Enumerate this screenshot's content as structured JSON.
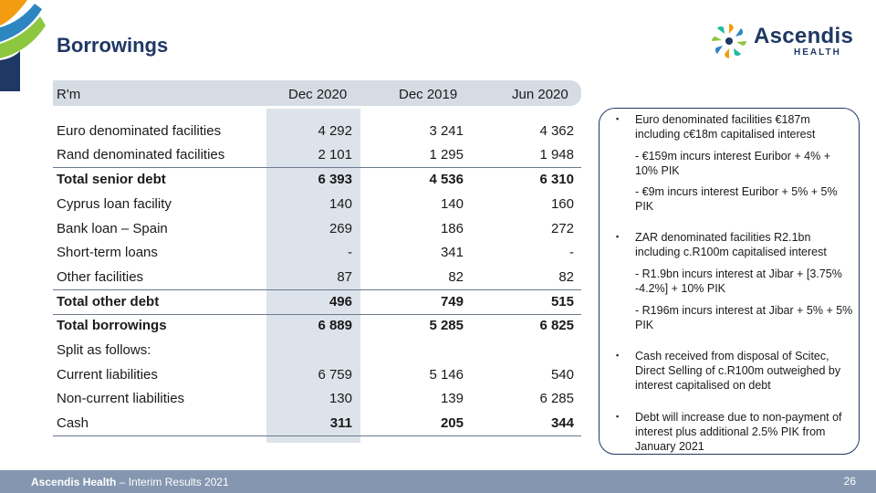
{
  "slide": {
    "title": "Borrowings",
    "page_number": "26",
    "footer_brand": "Ascendis Health",
    "footer_rest": " – Interim Results 2021"
  },
  "logo": {
    "name": "Ascendis",
    "sub": "HEALTH"
  },
  "table": {
    "headers": [
      "R'm",
      "Dec 2020",
      "Dec 2019",
      "Jun 2020"
    ],
    "rows": [
      {
        "label": "Euro denominated facilities",
        "v": [
          "4 292",
          "3 241",
          "4 362"
        ]
      },
      {
        "label": "Rand denominated facilities",
        "v": [
          "2 101",
          "1 295",
          "1 948"
        ]
      },
      {
        "label": "Total senior debt",
        "v": [
          "6 393",
          "4 536",
          "6 310"
        ]
      },
      {
        "label": "Cyprus loan facility",
        "v": [
          "140",
          "140",
          "160"
        ]
      },
      {
        "label": "Bank loan – Spain",
        "v": [
          "269",
          "186",
          "272"
        ]
      },
      {
        "label": "Short-term loans",
        "v": [
          "-",
          "341",
          "-"
        ]
      },
      {
        "label": "Other facilities",
        "v": [
          "87",
          "82",
          "82"
        ]
      },
      {
        "label": "Total other debt",
        "v": [
          "496",
          "749",
          "515"
        ]
      },
      {
        "label": "Total borrowings",
        "v": [
          "6 889",
          "5 285",
          "6 825"
        ]
      },
      {
        "label": "Split as follows:",
        "v": [
          "",
          "",
          ""
        ]
      },
      {
        "label": "Current liabilities",
        "v": [
          "6 759",
          "5 146",
          "540"
        ]
      },
      {
        "label": "Non-current liabilities",
        "v": [
          "130",
          "139",
          "6 285"
        ]
      },
      {
        "label": "Cash",
        "v": [
          "311",
          "205",
          "344"
        ]
      }
    ]
  },
  "notes": {
    "n1": "Euro denominated facilities €187m including c€18m capitalised interest",
    "n1a": "-  €159m incurs interest Euribor + 4% + 10% PIK",
    "n1b": "-  €9m incurs interest Euribor + 5% + 5% PIK",
    "n2": "ZAR denominated facilities R2.1bn including c.R100m capitalised interest",
    "n2a": "-  R1.9bn incurs interest at Jibar + [3.75% -4.2%] + 10% PIK",
    "n2b": "-  R196m incurs interest at Jibar + 5% + 5% PIK",
    "n3": "Cash received from disposal of Scitec, Direct Selling of c.R100m outweighed by interest capitalised on debt",
    "n4": "Debt will increase due to non-payment of interest plus additional 2.5% PIK from January 2021",
    "bullet": "▪"
  },
  "colors": {
    "navy": "#1f3864",
    "header_bar": "#d6dce4",
    "shade": "#dde3ea",
    "footer": "#8496b0"
  }
}
